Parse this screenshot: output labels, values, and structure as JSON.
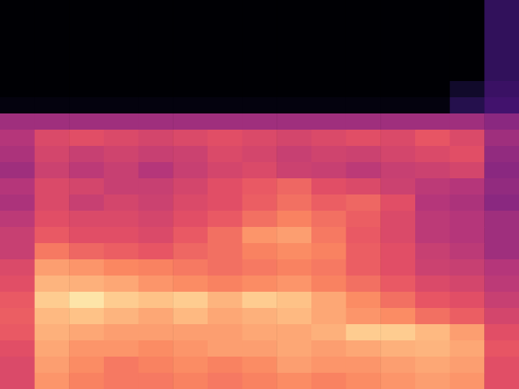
{
  "chart_data": {
    "type": "heatmap",
    "tick_labels": false,
    "xlim": [
      0,
      15
    ],
    "ylim": [
      0,
      24
    ],
    "zlim": [
      0,
      1
    ],
    "cells": [
      [
        0,
        0,
        0,
        0,
        0,
        0,
        0,
        0,
        0,
        0,
        0,
        0,
        0,
        0,
        0.18
      ],
      [
        0,
        0,
        0,
        0,
        0,
        0,
        0,
        0,
        0,
        0,
        0,
        0,
        0,
        0,
        0.18
      ],
      [
        0,
        0,
        0,
        0,
        0,
        0,
        0,
        0,
        0,
        0,
        0,
        0,
        0,
        0,
        0.18
      ],
      [
        0,
        0,
        0,
        0,
        0,
        0,
        0,
        0,
        0,
        0,
        0,
        0,
        0,
        0,
        0.18
      ],
      [
        0,
        0,
        0,
        0,
        0,
        0,
        0,
        0,
        0,
        0,
        0,
        0,
        0,
        0,
        0.18
      ],
      [
        0,
        0,
        0,
        0,
        0,
        0,
        0,
        0,
        0,
        0,
        0,
        0,
        0,
        0.08,
        0.2
      ],
      [
        0.02,
        0.02,
        0.02,
        0.02,
        0.02,
        0.02,
        0.02,
        0.02,
        0.02,
        0.02,
        0.02,
        0.02,
        0.02,
        0.15,
        0.22
      ],
      [
        0.45,
        0.45,
        0.45,
        0.45,
        0.45,
        0.45,
        0.45,
        0.45,
        0.45,
        0.45,
        0.45,
        0.45,
        0.45,
        0.45,
        0.4
      ],
      [
        0.5,
        0.6,
        0.62,
        0.6,
        0.58,
        0.6,
        0.62,
        0.6,
        0.58,
        0.6,
        0.62,
        0.6,
        0.64,
        0.6,
        0.45
      ],
      [
        0.48,
        0.58,
        0.55,
        0.57,
        0.55,
        0.56,
        0.6,
        0.58,
        0.55,
        0.57,
        0.56,
        0.58,
        0.6,
        0.62,
        0.42
      ],
      [
        0.45,
        0.56,
        0.52,
        0.55,
        0.5,
        0.55,
        0.58,
        0.6,
        0.56,
        0.55,
        0.52,
        0.55,
        0.56,
        0.58,
        0.4
      ],
      [
        0.5,
        0.6,
        0.58,
        0.55,
        0.55,
        0.58,
        0.62,
        0.65,
        0.68,
        0.62,
        0.6,
        0.56,
        0.52,
        0.5,
        0.42
      ],
      [
        0.48,
        0.6,
        0.55,
        0.58,
        0.56,
        0.6,
        0.62,
        0.66,
        0.7,
        0.66,
        0.68,
        0.62,
        0.5,
        0.48,
        0.4
      ],
      [
        0.52,
        0.62,
        0.6,
        0.6,
        0.58,
        0.62,
        0.65,
        0.7,
        0.74,
        0.7,
        0.66,
        0.6,
        0.52,
        0.5,
        0.45
      ],
      [
        0.55,
        0.65,
        0.62,
        0.62,
        0.6,
        0.65,
        0.7,
        0.78,
        0.8,
        0.72,
        0.65,
        0.6,
        0.52,
        0.5,
        0.45
      ],
      [
        0.55,
        0.72,
        0.68,
        0.66,
        0.64,
        0.68,
        0.7,
        0.74,
        0.76,
        0.74,
        0.66,
        0.62,
        0.55,
        0.52,
        0.45
      ],
      [
        0.6,
        0.8,
        0.78,
        0.75,
        0.74,
        0.72,
        0.7,
        0.72,
        0.74,
        0.72,
        0.66,
        0.62,
        0.56,
        0.55,
        0.5
      ],
      [
        0.62,
        0.85,
        0.84,
        0.82,
        0.78,
        0.76,
        0.74,
        0.76,
        0.78,
        0.74,
        0.7,
        0.65,
        0.6,
        0.58,
        0.52
      ],
      [
        0.65,
        0.9,
        0.95,
        0.9,
        0.88,
        0.9,
        0.85,
        0.9,
        0.88,
        0.82,
        0.76,
        0.7,
        0.64,
        0.62,
        0.55
      ],
      [
        0.66,
        0.86,
        0.88,
        0.85,
        0.82,
        0.86,
        0.82,
        0.84,
        0.86,
        0.82,
        0.78,
        0.76,
        0.7,
        0.66,
        0.58
      ],
      [
        0.65,
        0.84,
        0.82,
        0.8,
        0.8,
        0.8,
        0.8,
        0.82,
        0.82,
        0.84,
        0.9,
        0.9,
        0.86,
        0.8,
        0.62
      ],
      [
        0.62,
        0.82,
        0.78,
        0.78,
        0.76,
        0.78,
        0.8,
        0.8,
        0.82,
        0.8,
        0.82,
        0.84,
        0.85,
        0.82,
        0.64
      ],
      [
        0.6,
        0.8,
        0.76,
        0.72,
        0.74,
        0.76,
        0.74,
        0.76,
        0.8,
        0.78,
        0.78,
        0.8,
        0.82,
        0.8,
        0.62
      ],
      [
        0.6,
        0.78,
        0.74,
        0.72,
        0.72,
        0.74,
        0.72,
        0.74,
        0.76,
        0.74,
        0.76,
        0.78,
        0.8,
        0.78,
        0.62
      ]
    ]
  }
}
